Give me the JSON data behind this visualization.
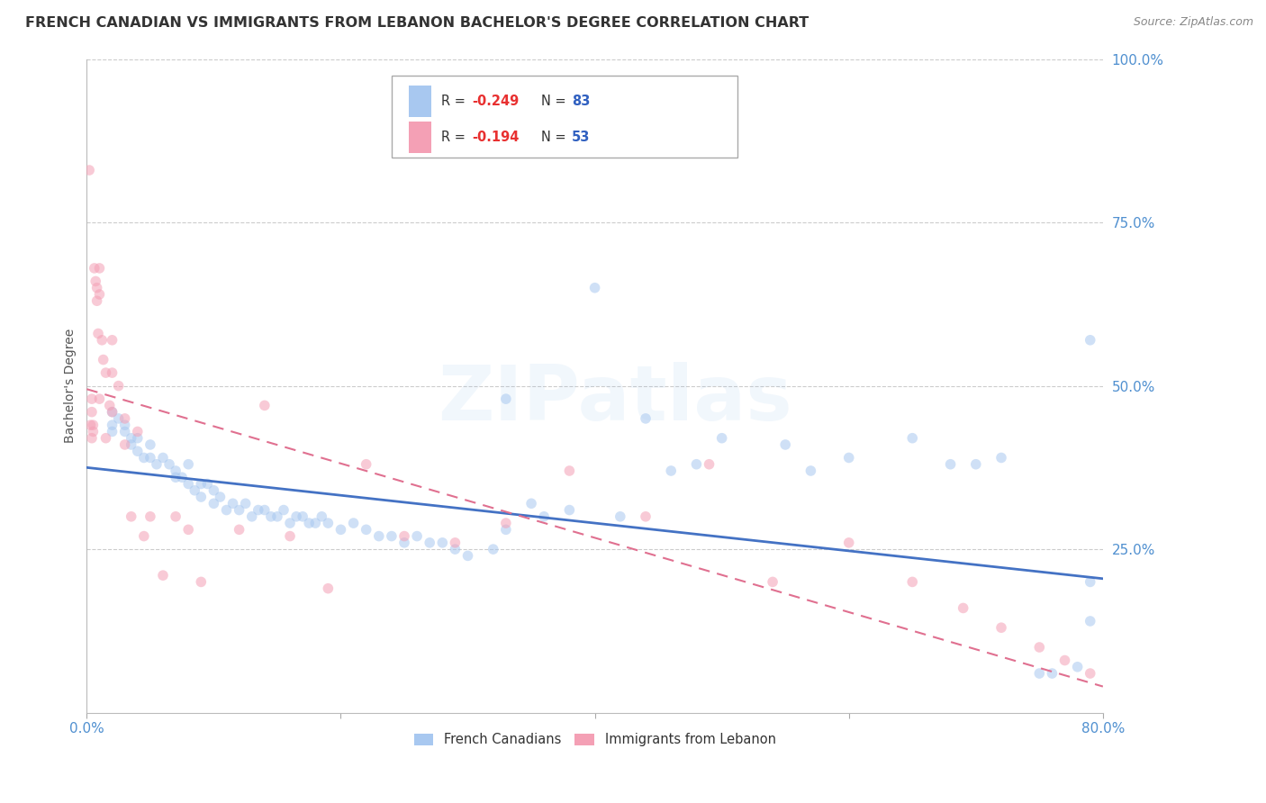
{
  "title": "FRENCH CANADIAN VS IMMIGRANTS FROM LEBANON BACHELOR'S DEGREE CORRELATION CHART",
  "source": "Source: ZipAtlas.com",
  "ylabel": "Bachelor's Degree",
  "watermark": "ZIPatlas",
  "xlim": [
    0.0,
    0.8
  ],
  "ylim": [
    0.0,
    1.0
  ],
  "ytick_labels": [
    "100.0%",
    "75.0%",
    "50.0%",
    "25.0%"
  ],
  "ytick_values": [
    1.0,
    0.75,
    0.5,
    0.25
  ],
  "blue_color": "#A8C8F0",
  "pink_color": "#F4A0B5",
  "blue_line_color": "#4472C4",
  "pink_line_color": "#E07090",
  "tick_color": "#5090D0",
  "legend_label_blue": "French Canadians",
  "legend_label_pink": "Immigrants from Lebanon",
  "blue_scatter_x": [
    0.02,
    0.02,
    0.02,
    0.025,
    0.03,
    0.03,
    0.035,
    0.035,
    0.04,
    0.04,
    0.045,
    0.05,
    0.05,
    0.055,
    0.06,
    0.065,
    0.07,
    0.07,
    0.075,
    0.08,
    0.08,
    0.085,
    0.09,
    0.09,
    0.095,
    0.1,
    0.1,
    0.105,
    0.11,
    0.115,
    0.12,
    0.125,
    0.13,
    0.135,
    0.14,
    0.145,
    0.15,
    0.155,
    0.16,
    0.165,
    0.17,
    0.175,
    0.18,
    0.185,
    0.19,
    0.2,
    0.21,
    0.22,
    0.23,
    0.24,
    0.25,
    0.26,
    0.27,
    0.28,
    0.29,
    0.3,
    0.32,
    0.33,
    0.35,
    0.36,
    0.38,
    0.4,
    0.42,
    0.44,
    0.46,
    0.48,
    0.5,
    0.55,
    0.57,
    0.6,
    0.65,
    0.68,
    0.7,
    0.72,
    0.75,
    0.76,
    0.78,
    0.79,
    0.79,
    0.79,
    0.33
  ],
  "blue_scatter_y": [
    0.44,
    0.43,
    0.46,
    0.45,
    0.43,
    0.44,
    0.42,
    0.41,
    0.42,
    0.4,
    0.39,
    0.41,
    0.39,
    0.38,
    0.39,
    0.38,
    0.37,
    0.36,
    0.36,
    0.38,
    0.35,
    0.34,
    0.35,
    0.33,
    0.35,
    0.32,
    0.34,
    0.33,
    0.31,
    0.32,
    0.31,
    0.32,
    0.3,
    0.31,
    0.31,
    0.3,
    0.3,
    0.31,
    0.29,
    0.3,
    0.3,
    0.29,
    0.29,
    0.3,
    0.29,
    0.28,
    0.29,
    0.28,
    0.27,
    0.27,
    0.26,
    0.27,
    0.26,
    0.26,
    0.25,
    0.24,
    0.25,
    0.28,
    0.32,
    0.3,
    0.31,
    0.65,
    0.3,
    0.45,
    0.37,
    0.38,
    0.42,
    0.41,
    0.37,
    0.39,
    0.42,
    0.38,
    0.38,
    0.39,
    0.06,
    0.06,
    0.07,
    0.57,
    0.2,
    0.14,
    0.48
  ],
  "pink_scatter_x": [
    0.002,
    0.003,
    0.004,
    0.004,
    0.004,
    0.005,
    0.005,
    0.006,
    0.007,
    0.008,
    0.008,
    0.009,
    0.01,
    0.01,
    0.01,
    0.012,
    0.013,
    0.015,
    0.015,
    0.018,
    0.02,
    0.02,
    0.02,
    0.025,
    0.03,
    0.03,
    0.035,
    0.04,
    0.045,
    0.05,
    0.06,
    0.07,
    0.08,
    0.09,
    0.12,
    0.14,
    0.16,
    0.19,
    0.22,
    0.25,
    0.29,
    0.33,
    0.38,
    0.44,
    0.49,
    0.54,
    0.6,
    0.65,
    0.69,
    0.72,
    0.75,
    0.77,
    0.79
  ],
  "pink_scatter_y": [
    0.83,
    0.44,
    0.46,
    0.48,
    0.42,
    0.44,
    0.43,
    0.68,
    0.66,
    0.65,
    0.63,
    0.58,
    0.68,
    0.64,
    0.48,
    0.57,
    0.54,
    0.52,
    0.42,
    0.47,
    0.57,
    0.52,
    0.46,
    0.5,
    0.45,
    0.41,
    0.3,
    0.43,
    0.27,
    0.3,
    0.21,
    0.3,
    0.28,
    0.2,
    0.28,
    0.47,
    0.27,
    0.19,
    0.38,
    0.27,
    0.26,
    0.29,
    0.37,
    0.3,
    0.38,
    0.2,
    0.26,
    0.2,
    0.16,
    0.13,
    0.1,
    0.08,
    0.06
  ],
  "blue_trend_y_start": 0.375,
  "blue_trend_y_end": 0.205,
  "pink_trend_y_start": 0.495,
  "pink_trend_y_end": 0.04,
  "grid_color": "#CCCCCC",
  "title_fontsize": 11.5,
  "axis_label_fontsize": 10,
  "tick_fontsize": 11,
  "source_fontsize": 9,
  "marker_size": 70,
  "marker_alpha": 0.55,
  "watermark_fontsize": 62,
  "watermark_alpha": 0.1,
  "watermark_color": "#7EB3E8",
  "r_color": "#E83030",
  "n_color": "#3060C0"
}
